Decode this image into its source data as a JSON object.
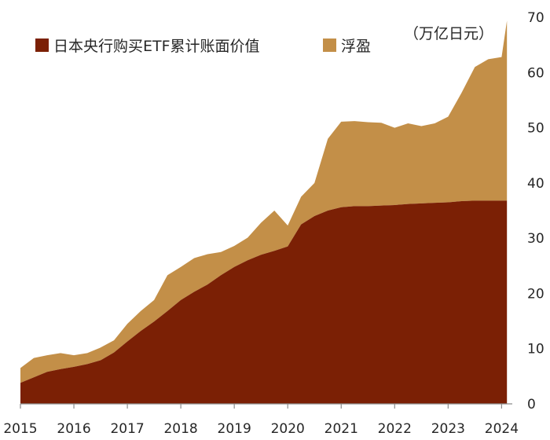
{
  "chart_data": {
    "type": "area",
    "stacked": true,
    "unit_label": "（万亿日元）",
    "legend_position": "top-left",
    "grid": false,
    "xlim": [
      2015,
      2024.2
    ],
    "ylim": [
      0,
      70
    ],
    "x_ticks": [
      2015,
      2016,
      2017,
      2018,
      2019,
      2020,
      2021,
      2022,
      2023,
      2024
    ],
    "y_ticks": [
      0,
      10,
      20,
      30,
      40,
      50,
      60,
      70
    ],
    "x": [
      2015.0,
      2015.25,
      2015.5,
      2015.75,
      2016.0,
      2016.25,
      2016.5,
      2016.75,
      2017.0,
      2017.25,
      2017.5,
      2017.75,
      2018.0,
      2018.25,
      2018.5,
      2018.75,
      2019.0,
      2019.25,
      2019.5,
      2019.75,
      2020.0,
      2020.25,
      2020.5,
      2020.75,
      2021.0,
      2021.25,
      2021.5,
      2021.75,
      2022.0,
      2022.25,
      2022.5,
      2022.75,
      2023.0,
      2023.25,
      2023.5,
      2023.75,
      2024.0,
      2024.1
    ],
    "series": [
      {
        "name": "日本央行购买ETF累计账面价值",
        "color": "#7b2005",
        "values": [
          3.8,
          4.8,
          5.8,
          6.3,
          6.7,
          7.2,
          7.9,
          9.3,
          11.3,
          13.2,
          14.9,
          16.8,
          18.8,
          20.3,
          21.6,
          23.3,
          24.8,
          26.0,
          27.0,
          27.7,
          28.5,
          32.5,
          34.0,
          35.0,
          35.6,
          35.8,
          35.8,
          35.9,
          36.0,
          36.2,
          36.3,
          36.4,
          36.5,
          36.7,
          36.8,
          36.8,
          36.8,
          36.8
        ]
      },
      {
        "name": "浮盈",
        "color": "#c38f48",
        "values": [
          2.7,
          3.5,
          3.0,
          2.9,
          2.1,
          2.0,
          2.3,
          2.2,
          3.2,
          3.6,
          3.9,
          6.5,
          6.0,
          6.1,
          5.5,
          4.2,
          3.8,
          4.1,
          5.8,
          7.3,
          3.8,
          5.0,
          6.0,
          13.0,
          15.5,
          15.4,
          15.2,
          15.0,
          14.0,
          14.6,
          14.0,
          14.4,
          15.5,
          19.6,
          24.2,
          25.6,
          26.0,
          32.6
        ]
      }
    ]
  }
}
